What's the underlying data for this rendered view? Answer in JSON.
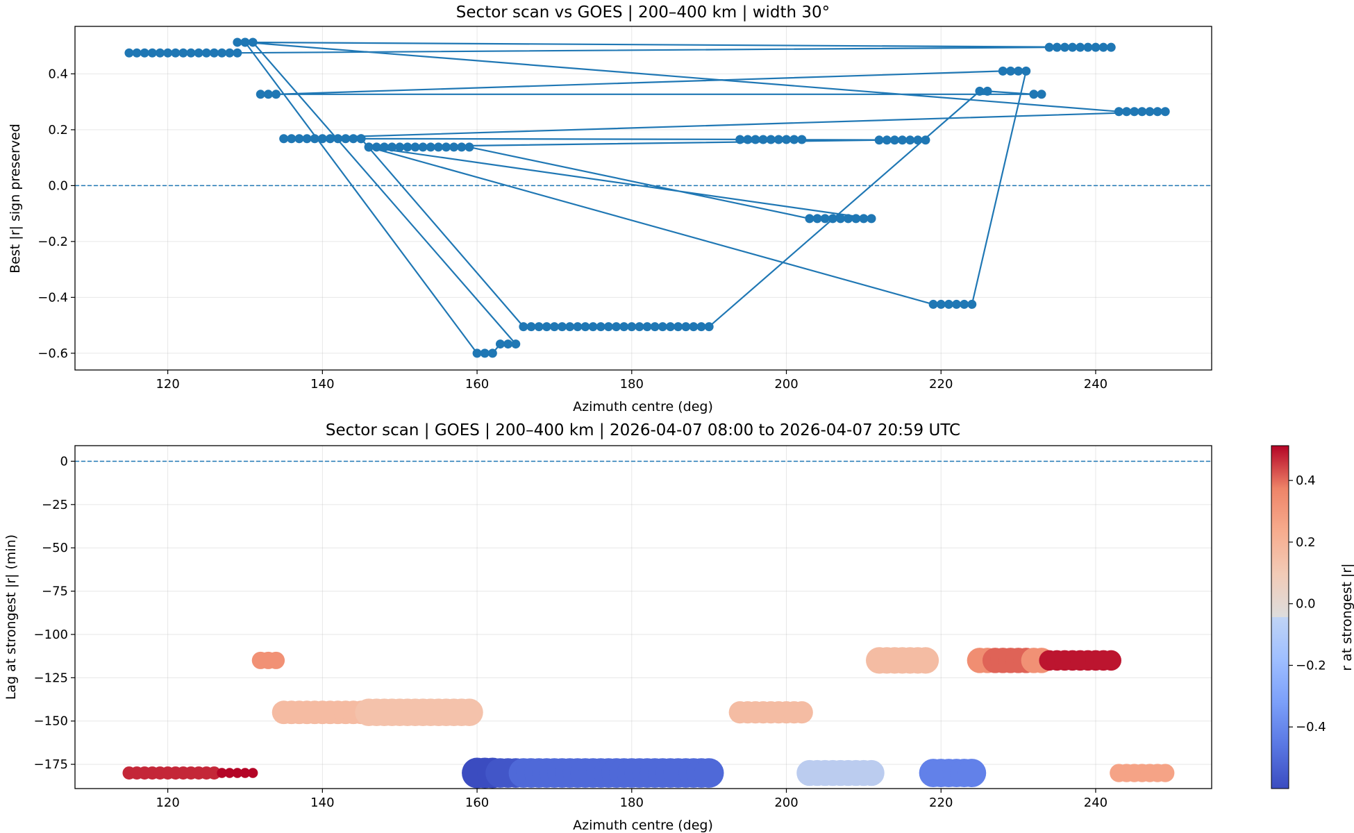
{
  "chart_data": [
    {
      "type": "line",
      "title": "Sector scan vs GOES | 200–400 km | width 30°",
      "xlabel": "Azimuth centre (deg)",
      "ylabel": "Best |r| sign preserved",
      "xlim": [
        108,
        255
      ],
      "ylim": [
        -0.66,
        0.57
      ],
      "xticks": [
        120,
        140,
        160,
        180,
        200,
        220,
        240
      ],
      "yticks": [
        -0.6,
        -0.4,
        -0.2,
        0.0,
        0.2,
        0.4
      ],
      "ytick_labels": [
        "−0.6",
        "−0.4",
        "−0.2",
        "0.0",
        "0.2",
        "0.4"
      ],
      "grid": true,
      "reference_line": 0,
      "color": "#1f77b4",
      "series": [
        {
          "points": [
            [
              115,
              0.475
            ],
            [
              116,
              0.475
            ],
            [
              117,
              0.475
            ],
            [
              118,
              0.475
            ],
            [
              119,
              0.475
            ],
            [
              120,
              0.475
            ],
            [
              121,
              0.475
            ],
            [
              122,
              0.475
            ],
            [
              123,
              0.475
            ],
            [
              124,
              0.475
            ],
            [
              125,
              0.475
            ],
            [
              126,
              0.475
            ],
            [
              127,
              0.475
            ],
            [
              128,
              0.475
            ],
            [
              129,
              0.475
            ],
            [
              234,
              0.495
            ],
            [
              235,
              0.495
            ],
            [
              236,
              0.495
            ],
            [
              237,
              0.495
            ],
            [
              238,
              0.495
            ],
            [
              239,
              0.495
            ],
            [
              240,
              0.495
            ],
            [
              241,
              0.495
            ],
            [
              242,
              0.495
            ],
            [
              129,
              0.513
            ],
            [
              130,
              0.513
            ],
            [
              131,
              0.513
            ],
            [
              165,
              -0.567
            ],
            [
              164,
              -0.567
            ],
            [
              163,
              -0.567
            ],
            [
              162,
              -0.6
            ],
            [
              161,
              -0.6
            ],
            [
              160,
              -0.6
            ],
            [
              130,
              0.513
            ],
            [
              243,
              0.265
            ],
            [
              244,
              0.265
            ],
            [
              245,
              0.265
            ],
            [
              246,
              0.265
            ],
            [
              247,
              0.265
            ],
            [
              248,
              0.265
            ],
            [
              249,
              0.265
            ],
            [
              135,
              0.168
            ],
            [
              136,
              0.168
            ],
            [
              137,
              0.168
            ],
            [
              138,
              0.168
            ],
            [
              139,
              0.168
            ],
            [
              140,
              0.168
            ],
            [
              141,
              0.168
            ],
            [
              142,
              0.168
            ],
            [
              143,
              0.168
            ],
            [
              144,
              0.168
            ],
            [
              145,
              0.168
            ],
            [
              166,
              -0.505
            ],
            [
              167,
              -0.505
            ],
            [
              168,
              -0.505
            ],
            [
              169,
              -0.505
            ],
            [
              170,
              -0.505
            ],
            [
              171,
              -0.505
            ],
            [
              172,
              -0.505
            ],
            [
              173,
              -0.505
            ],
            [
              174,
              -0.505
            ],
            [
              175,
              -0.505
            ],
            [
              176,
              -0.505
            ],
            [
              177,
              -0.505
            ],
            [
              178,
              -0.505
            ],
            [
              179,
              -0.505
            ],
            [
              180,
              -0.505
            ],
            [
              181,
              -0.505
            ],
            [
              182,
              -0.505
            ],
            [
              183,
              -0.505
            ],
            [
              184,
              -0.505
            ],
            [
              185,
              -0.505
            ],
            [
              186,
              -0.505
            ],
            [
              187,
              -0.505
            ],
            [
              188,
              -0.505
            ],
            [
              189,
              -0.505
            ],
            [
              190,
              -0.505
            ],
            [
              225,
              0.338
            ],
            [
              226,
              0.338
            ],
            [
              232,
              0.327
            ],
            [
              233,
              0.327
            ],
            [
              132,
              0.327
            ],
            [
              133,
              0.327
            ],
            [
              134,
              0.327
            ],
            [
              228,
              0.41
            ],
            [
              229,
              0.41
            ],
            [
              230,
              0.41
            ],
            [
              231,
              0.41
            ],
            [
              224,
              -0.425
            ],
            [
              223,
              -0.425
            ],
            [
              222,
              -0.425
            ],
            [
              221,
              -0.425
            ],
            [
              220,
              -0.425
            ],
            [
              219,
              -0.425
            ],
            [
              146,
              0.138
            ],
            [
              147,
              0.138
            ],
            [
              148,
              0.138
            ],
            [
              149,
              0.138
            ],
            [
              150,
              0.138
            ],
            [
              151,
              0.138
            ],
            [
              152,
              0.138
            ],
            [
              153,
              0.138
            ],
            [
              154,
              0.138
            ],
            [
              155,
              0.138
            ],
            [
              156,
              0.138
            ],
            [
              157,
              0.138
            ],
            [
              158,
              0.138
            ],
            [
              159,
              0.138
            ],
            [
              203,
              -0.118
            ],
            [
              204,
              -0.118
            ],
            [
              205,
              -0.118
            ],
            [
              206,
              -0.118
            ],
            [
              207,
              -0.118
            ],
            [
              208,
              -0.118
            ],
            [
              209,
              -0.118
            ],
            [
              210,
              -0.118
            ],
            [
              211,
              -0.118
            ],
            [
              146,
              0.138
            ],
            [
              212,
              0.163
            ],
            [
              213,
              0.163
            ],
            [
              214,
              0.163
            ],
            [
              215,
              0.163
            ],
            [
              216,
              0.163
            ],
            [
              217,
              0.163
            ],
            [
              218,
              0.163
            ],
            [
              194,
              0.165
            ],
            [
              195,
              0.165
            ],
            [
              196,
              0.165
            ],
            [
              197,
              0.165
            ],
            [
              198,
              0.165
            ],
            [
              199,
              0.165
            ],
            [
              200,
              0.165
            ],
            [
              201,
              0.165
            ],
            [
              202,
              0.165
            ],
            [
              145,
              0.168
            ]
          ]
        }
      ]
    },
    {
      "type": "scatter",
      "title": "Sector scan | GOES | 200–400 km | 2026-04-07 08:00 to 2026-04-07 20:59 UTC",
      "xlabel": "Azimuth centre (deg)",
      "ylabel": "Lag at strongest |r| (min)",
      "xlim": [
        108,
        255
      ],
      "ylim": [
        -189,
        9
      ],
      "xticks": [
        120,
        140,
        160,
        180,
        200,
        220,
        240
      ],
      "yticks": [
        -175,
        -150,
        -125,
        -100,
        -75,
        -50,
        -25,
        0
      ],
      "ytick_labels": [
        "−175",
        "−150",
        "−125",
        "−100",
        "−75",
        "−50",
        "−25",
        "0"
      ],
      "grid": true,
      "reference_line": 0,
      "colorbar": {
        "label": "r at strongest |r|",
        "range": [
          -0.6,
          0.513
        ],
        "ticks": [
          -0.4,
          -0.2,
          0.0,
          0.2,
          0.4
        ],
        "tick_labels": [
          "−0.4",
          "−0.2",
          "0.0",
          "0.2",
          "0.4"
        ],
        "colormap": "coolwarm"
      },
      "groups": [
        {
          "x": [
            115,
            116,
            117,
            118,
            119,
            120,
            121,
            122,
            123,
            124,
            125,
            126
          ],
          "lag": -180,
          "r": 0.475,
          "size": 0.43
        },
        {
          "x": [
            127,
            128,
            129,
            130,
            131
          ],
          "lag": -180,
          "r": 0.513,
          "size": 0.33
        },
        {
          "x": [
            132,
            133,
            134
          ],
          "lag": -115,
          "r": 0.327,
          "size": 0.57
        },
        {
          "x": [
            135,
            136,
            137,
            138,
            139,
            140,
            141,
            142,
            143,
            144,
            145
          ],
          "lag": -145,
          "r": 0.168,
          "size": 0.77
        },
        {
          "x": [
            146,
            147,
            148,
            149,
            150,
            151,
            152,
            153,
            154,
            155,
            156,
            157,
            158,
            159
          ],
          "lag": -145,
          "r": 0.138,
          "size": 0.9
        },
        {
          "x": [
            160,
            161,
            162
          ],
          "lag": -180,
          "r": -0.6,
          "size": 1.0
        },
        {
          "x": [
            163,
            164,
            165
          ],
          "lag": -180,
          "r": -0.567,
          "size": 0.97
        },
        {
          "x": [
            166,
            167,
            168,
            169,
            170,
            171,
            172,
            173,
            174,
            175,
            176,
            177,
            178,
            179,
            180,
            181,
            182,
            183,
            184,
            185,
            186,
            187,
            188,
            189,
            190
          ],
          "lag": -180,
          "r": -0.505,
          "size": 0.97
        },
        {
          "x": [
            194,
            195,
            196,
            197,
            198,
            199,
            200,
            201,
            202
          ],
          "lag": -145,
          "r": 0.165,
          "size": 0.73
        },
        {
          "x": [
            203,
            204,
            205,
            206,
            207,
            208,
            209,
            210,
            211
          ],
          "lag": -180,
          "r": -0.118,
          "size": 0.85
        },
        {
          "x": [
            212,
            213,
            214,
            215,
            216,
            217,
            218
          ],
          "lag": -115,
          "r": 0.163,
          "size": 0.87
        },
        {
          "x": [
            219,
            220,
            221,
            222,
            223,
            224
          ],
          "lag": -180,
          "r": -0.425,
          "size": 0.93
        },
        {
          "x": [
            225,
            226
          ],
          "lag": -115,
          "r": 0.338,
          "size": 0.83
        },
        {
          "x": [
            227,
            228,
            229,
            230,
            231
          ],
          "lag": -115,
          "r": 0.41,
          "size": 0.83
        },
        {
          "x": [
            232,
            233
          ],
          "lag": -115,
          "r": 0.327,
          "size": 0.83
        },
        {
          "x": [
            234,
            235,
            236,
            237,
            238,
            239,
            240,
            241,
            242
          ],
          "lag": -115,
          "r": 0.495,
          "size": 0.67
        },
        {
          "x": [
            243,
            244,
            245,
            246,
            247,
            248,
            249
          ],
          "lag": -180,
          "r": 0.265,
          "size": 0.6
        }
      ]
    }
  ]
}
